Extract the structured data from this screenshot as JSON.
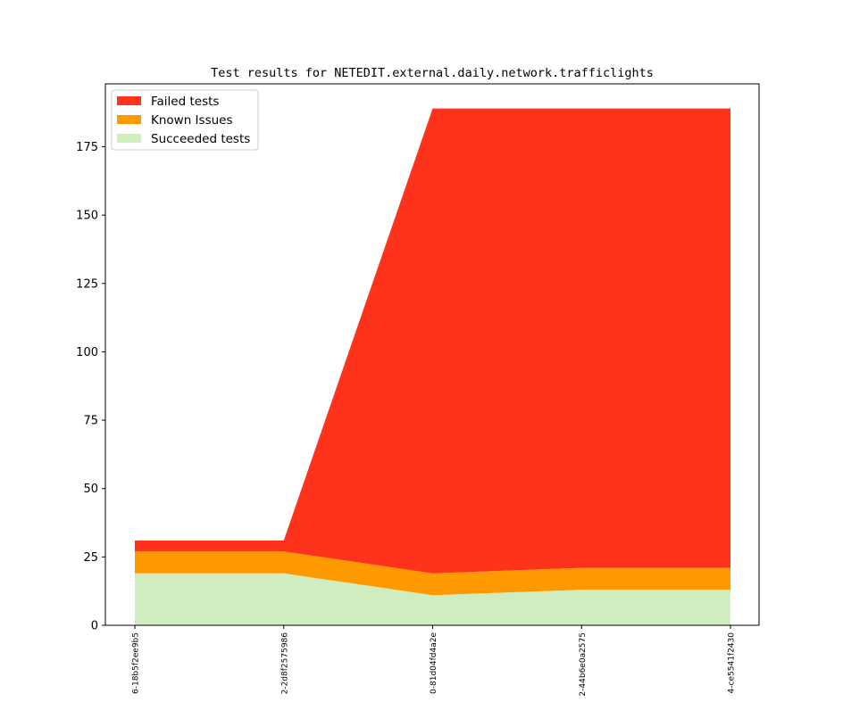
{
  "chart_data": {
    "type": "area",
    "title": "Test results for NETEDIT.external.daily.network.trafficlights",
    "xlabel": "",
    "ylabel": "",
    "categories": [
      "6-18b5f2ee9b5",
      "2-2d8f2575986",
      "0-81d04fd4a2e",
      "2-44b6e0a2575",
      "4-ce5541f2430"
    ],
    "ylim": [
      0,
      198
    ],
    "yticks": [
      0,
      25,
      50,
      75,
      100,
      125,
      150,
      175
    ],
    "stacked": true,
    "series": [
      {
        "name": "Succeeded tests",
        "color": "#cfedbf",
        "values": [
          19,
          19,
          11,
          13,
          13
        ]
      },
      {
        "name": "Known Issues",
        "color": "#ff9900",
        "values": [
          8,
          8,
          8,
          8,
          8
        ]
      },
      {
        "name": "Failed tests",
        "color": "#ff331c",
        "values": [
          4,
          4,
          170,
          168,
          168
        ]
      }
    ],
    "legend": {
      "position": "top-left",
      "order": [
        "Failed tests",
        "Known Issues",
        "Succeeded tests"
      ]
    },
    "grid": false
  }
}
